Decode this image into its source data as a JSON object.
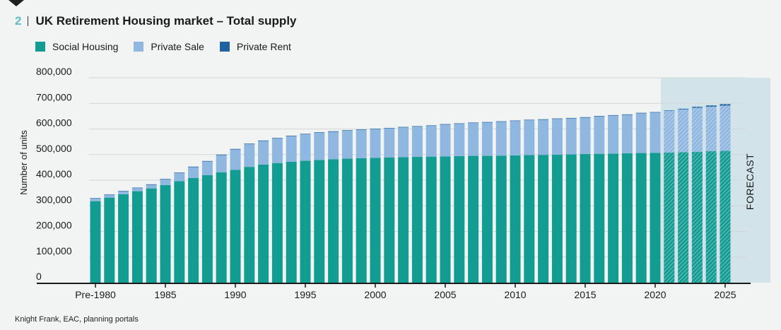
{
  "figure": {
    "number": "2",
    "title": "UK Retirement Housing market – Total supply"
  },
  "source": "Knight Frank, EAC, planning portals",
  "colors": {
    "social": "#139c92",
    "private_sale": "#8fb7e0",
    "private_rent": "#1f63a1",
    "forecast_bg": "#d3e3ea",
    "axis": "#1a1a1a",
    "grid": "#cfd8d6"
  },
  "chart_data": {
    "type": "bar",
    "stacked": true,
    "title": "UK Retirement Housing market – Total supply",
    "xlabel": "",
    "ylabel": "Number of units",
    "ylim": [
      0,
      800000
    ],
    "yticks": [
      0,
      100000,
      200000,
      300000,
      400000,
      500000,
      600000,
      700000,
      800000
    ],
    "ytick_labels": [
      "0",
      "100,000",
      "200,000",
      "300,000",
      "400,000",
      "500,000",
      "600,000",
      "700,000",
      "800,000"
    ],
    "xtick_labels": [
      {
        "index": 0,
        "label": "Pre-1980"
      },
      {
        "index": 5,
        "label": "1985"
      },
      {
        "index": 10,
        "label": "1990"
      },
      {
        "index": 15,
        "label": "1995"
      },
      {
        "index": 20,
        "label": "2000"
      },
      {
        "index": 25,
        "label": "2005"
      },
      {
        "index": 30,
        "label": "2010"
      },
      {
        "index": 35,
        "label": "2015"
      },
      {
        "index": 40,
        "label": "2020"
      },
      {
        "index": 45,
        "label": "2025"
      }
    ],
    "categories": [
      "Pre-1980",
      "1981",
      "1982",
      "1983",
      "1984",
      "1985",
      "1986",
      "1987",
      "1988",
      "1989",
      "1990",
      "1991",
      "1992",
      "1993",
      "1994",
      "1995",
      "1996",
      "1997",
      "1998",
      "1999",
      "2000",
      "2001",
      "2002",
      "2003",
      "2004",
      "2005",
      "2006",
      "2007",
      "2008",
      "2009",
      "2010",
      "2011",
      "2012",
      "2013",
      "2014",
      "2015",
      "2016",
      "2017",
      "2018",
      "2019",
      "2020",
      "2021",
      "2022",
      "2023",
      "2024",
      "2025"
    ],
    "forecast_from": "2021",
    "forecast_label": "FORECAST",
    "series": [
      {
        "name": "Social Housing",
        "key": "social",
        "values": [
          318000,
          332000,
          345000,
          357000,
          368000,
          381000,
          396000,
          409000,
          420000,
          431000,
          440000,
          452000,
          461000,
          467000,
          472000,
          476000,
          479000,
          482000,
          484000,
          486000,
          487000,
          489000,
          490000,
          491000,
          492000,
          493000,
          494000,
          495000,
          495000,
          496000,
          497000,
          498000,
          499000,
          500000,
          501000,
          502000,
          503000,
          504000,
          505000,
          506000,
          507000,
          508000,
          509000,
          511000,
          513000,
          515000
        ]
      },
      {
        "name": "Private Sale",
        "key": "private_sale",
        "values": [
          10000,
          10000,
          11000,
          12000,
          14000,
          22000,
          32000,
          42000,
          53000,
          67000,
          80000,
          89000,
          92000,
          96000,
          100000,
          103000,
          106000,
          107000,
          109000,
          110000,
          112000,
          113000,
          116000,
          118000,
          120000,
          124000,
          126000,
          128000,
          130000,
          132000,
          134000,
          136000,
          137000,
          139000,
          140000,
          142000,
          146000,
          148000,
          150000,
          155000,
          157000,
          163000,
          167000,
          172000,
          174000,
          176000
        ]
      },
      {
        "name": "Private Rent",
        "key": "private_rent",
        "values": [
          2000,
          2000,
          2000,
          2000,
          2000,
          2000,
          2000,
          2000,
          2000,
          2000,
          2000,
          2000,
          2000,
          2000,
          2000,
          2000,
          2000,
          2000,
          2000,
          2000,
          2000,
          2000,
          2000,
          2000,
          2000,
          2000,
          2000,
          2000,
          2000,
          2000,
          2000,
          2000,
          2000,
          2000,
          2000,
          2000,
          2000,
          2000,
          2000,
          2000,
          2000,
          2000,
          3000,
          4000,
          5000,
          6000
        ]
      }
    ]
  }
}
